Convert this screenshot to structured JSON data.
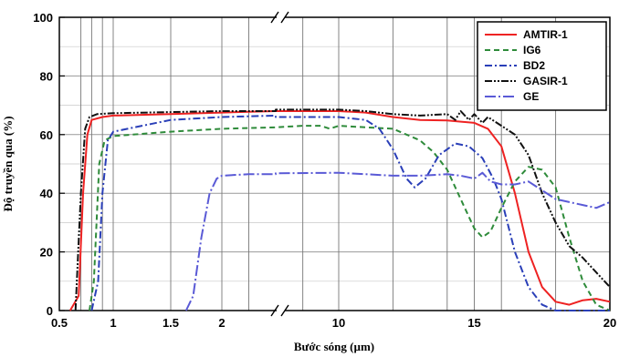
{
  "chart_data": {
    "type": "line",
    "title": "",
    "xlabel": "Bước sóng (µm)",
    "ylabel": "Độ truyền qua (%)",
    "ylim": [
      0,
      100
    ],
    "y_ticks": [
      "0",
      "20",
      "40",
      "60",
      "80",
      "100"
    ],
    "x_ticks": [
      "0.5",
      "1",
      "1.5",
      "2",
      "10",
      "15",
      "20"
    ],
    "x_axis_break": true,
    "grid": true,
    "legend_position": "top-right",
    "series": [
      {
        "name": "AMTIR-1",
        "color": "#ee2222",
        "dash": "solid",
        "points": [
          [
            0.6,
            0
          ],
          [
            0.68,
            5
          ],
          [
            0.72,
            40
          ],
          [
            0.76,
            60
          ],
          [
            0.8,
            65
          ],
          [
            0.9,
            66
          ],
          [
            1.0,
            66.5
          ],
          [
            1.5,
            67
          ],
          [
            2,
            67.5
          ],
          [
            2.5,
            67.8
          ],
          [
            3,
            68
          ],
          [
            7,
            68
          ],
          [
            8,
            68
          ],
          [
            10,
            68
          ],
          [
            11,
            67.5
          ],
          [
            12,
            66
          ],
          [
            13,
            65
          ],
          [
            14,
            64.8
          ],
          [
            15,
            64
          ],
          [
            15.5,
            62
          ],
          [
            16,
            56
          ],
          [
            16.5,
            40
          ],
          [
            17,
            20
          ],
          [
            17.5,
            8
          ],
          [
            18,
            3
          ],
          [
            18.5,
            2
          ],
          [
            19,
            3.5
          ],
          [
            19.5,
            4
          ],
          [
            20,
            3
          ]
        ]
      },
      {
        "name": "IG6",
        "color": "#2e8b3a",
        "dash": "6,4",
        "points": [
          [
            0.78,
            0
          ],
          [
            0.82,
            10
          ],
          [
            0.87,
            50
          ],
          [
            0.92,
            58
          ],
          [
            1.0,
            59.5
          ],
          [
            1.5,
            61
          ],
          [
            2,
            62
          ],
          [
            3,
            62.5
          ],
          [
            7,
            62.5
          ],
          [
            8,
            63
          ],
          [
            9,
            63
          ],
          [
            9.5,
            62
          ],
          [
            10,
            63
          ],
          [
            11,
            62.5
          ],
          [
            12,
            62
          ],
          [
            12.5,
            60
          ],
          [
            13,
            58
          ],
          [
            13.5,
            54
          ],
          [
            14,
            48
          ],
          [
            14.5,
            38
          ],
          [
            15,
            28
          ],
          [
            15.3,
            25
          ],
          [
            15.6,
            27
          ],
          [
            16,
            35
          ],
          [
            16.5,
            44
          ],
          [
            17,
            49
          ],
          [
            17.5,
            48
          ],
          [
            18,
            42
          ],
          [
            18.5,
            25
          ],
          [
            19,
            10
          ],
          [
            19.5,
            2
          ],
          [
            20,
            0
          ]
        ]
      },
      {
        "name": "BD2",
        "color": "#2a3fb8",
        "dash": "8,3,2,3",
        "points": [
          [
            0.8,
            0
          ],
          [
            0.86,
            10
          ],
          [
            0.9,
            40
          ],
          [
            0.95,
            58
          ],
          [
            1.0,
            61
          ],
          [
            1.5,
            65
          ],
          [
            2,
            66
          ],
          [
            3,
            66.5
          ],
          [
            7,
            66
          ],
          [
            8,
            66
          ],
          [
            10,
            66
          ],
          [
            11,
            65
          ],
          [
            11.5,
            62
          ],
          [
            12,
            55
          ],
          [
            12.5,
            45
          ],
          [
            12.8,
            42
          ],
          [
            13.2,
            45
          ],
          [
            13.7,
            53
          ],
          [
            14.3,
            57
          ],
          [
            14.8,
            56
          ],
          [
            15.3,
            52
          ],
          [
            15.7,
            45
          ],
          [
            16,
            38
          ],
          [
            16.5,
            20
          ],
          [
            17,
            8
          ],
          [
            17.5,
            2
          ],
          [
            18,
            0
          ],
          [
            20,
            0
          ]
        ]
      },
      {
        "name": "GASIR-1",
        "color": "#111111",
        "dash": "8,2,2,2,2,2",
        "points": [
          [
            0.65,
            0
          ],
          [
            0.7,
            40
          ],
          [
            0.74,
            62
          ],
          [
            0.78,
            66
          ],
          [
            0.85,
            67
          ],
          [
            1.0,
            67.3
          ],
          [
            2,
            68
          ],
          [
            3,
            68
          ],
          [
            7,
            68.5
          ],
          [
            10,
            68.5
          ],
          [
            11,
            68
          ],
          [
            12,
            67
          ],
          [
            13,
            66.5
          ],
          [
            14,
            67
          ],
          [
            14.3,
            65
          ],
          [
            14.5,
            68
          ],
          [
            14.8,
            65
          ],
          [
            15,
            67
          ],
          [
            15.3,
            64
          ],
          [
            15.5,
            66
          ],
          [
            16,
            63
          ],
          [
            16.5,
            60
          ],
          [
            17,
            53
          ],
          [
            17.5,
            40
          ],
          [
            18,
            30
          ],
          [
            18.5,
            22
          ],
          [
            19,
            18
          ],
          [
            19.5,
            13
          ],
          [
            20,
            8
          ]
        ]
      },
      {
        "name": "GE",
        "color": "#5a5ad6",
        "dash": "12,3,2,3",
        "points": [
          [
            1.65,
            0
          ],
          [
            1.72,
            5
          ],
          [
            1.8,
            25
          ],
          [
            1.88,
            40
          ],
          [
            1.95,
            45
          ],
          [
            2,
            46
          ],
          [
            2.5,
            46.5
          ],
          [
            3,
            46.5
          ],
          [
            7,
            46.8
          ],
          [
            10,
            47
          ],
          [
            11,
            46.5
          ],
          [
            12,
            46
          ],
          [
            13,
            46
          ],
          [
            14,
            46.5
          ],
          [
            14.5,
            46
          ],
          [
            15,
            45
          ],
          [
            15.3,
            47
          ],
          [
            15.6,
            44
          ],
          [
            16,
            43
          ],
          [
            16.5,
            43
          ],
          [
            17,
            44
          ],
          [
            17.5,
            41
          ],
          [
            18,
            38
          ],
          [
            18.5,
            37
          ],
          [
            19,
            36
          ],
          [
            19.5,
            35
          ],
          [
            20,
            37
          ]
        ]
      }
    ]
  }
}
